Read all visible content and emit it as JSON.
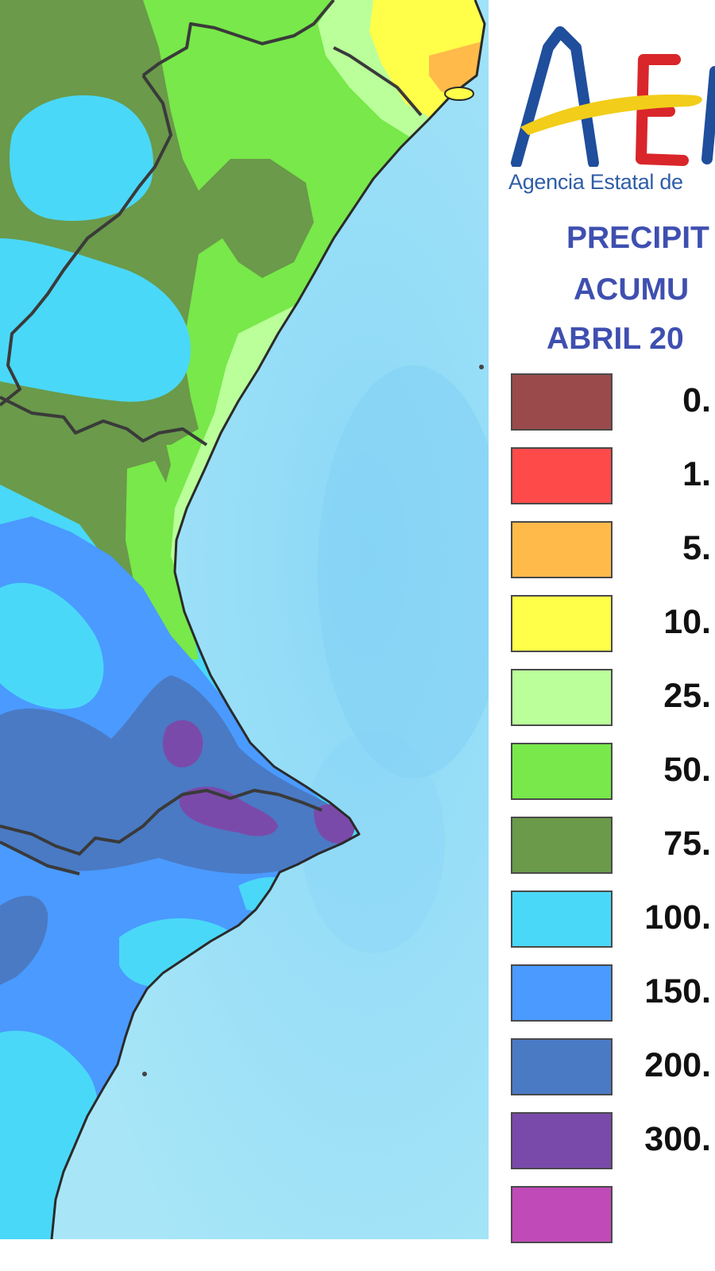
{
  "logo": {
    "name": "AEMET",
    "agency_text": "Agencia Estatal de",
    "colors": {
      "blue": "#1f4e9c",
      "red": "#d9262a",
      "yellow": "#f2cd1a"
    }
  },
  "title": {
    "line1": "PRECIPIT",
    "line2": "ACUMU",
    "line3": "ABRIL 20"
  },
  "legend": {
    "items": [
      {
        "label": "0.",
        "color": "#9a4a4a"
      },
      {
        "label": "1.",
        "color": "#ff4a4a"
      },
      {
        "label": "5.",
        "color": "#ffba4a"
      },
      {
        "label": "10.",
        "color": "#ffff4a"
      },
      {
        "label": "25.",
        "color": "#baff9a"
      },
      {
        "label": "50.",
        "color": "#78e84a"
      },
      {
        "label": "75.",
        "color": "#6a9a4a"
      },
      {
        "label": "100.",
        "color": "#4ad8f8"
      },
      {
        "label": "150.",
        "color": "#4a9aff"
      },
      {
        "label": "200.",
        "color": "#4a7ac4"
      },
      {
        "label": "300.",
        "color": "#7a4aaa"
      },
      {
        "label": "",
        "color": "#c04ab8"
      }
    ]
  },
  "map": {
    "sea_color": "#9fe0f5",
    "border_color": "#3a3a3a",
    "coast_color": "#2a2a2a"
  }
}
